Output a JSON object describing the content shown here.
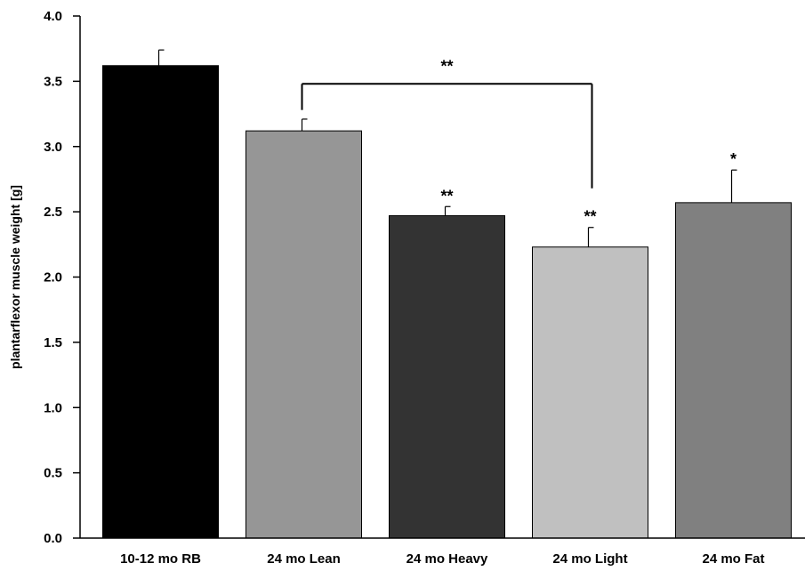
{
  "chart_data": {
    "type": "bar",
    "title": "",
    "xlabel": "",
    "ylabel": "plantarflexor muscle weight [g]",
    "ylim": [
      0,
      4.0
    ],
    "yticks": [
      "0.0",
      "0.5",
      "1.0",
      "1.5",
      "2.0",
      "2.5",
      "3.0",
      "3.5",
      "4.0"
    ],
    "grid": false,
    "categories": [
      "10-12 mo RB",
      "24 mo Lean",
      "24 mo Heavy",
      "24 mo Light",
      "24 mo Fat"
    ],
    "values": [
      3.62,
      3.12,
      2.47,
      2.23,
      2.57
    ],
    "errors": [
      0.12,
      0.09,
      0.07,
      0.15,
      0.25
    ],
    "colors": [
      "#000000",
      "#969696",
      "#333333",
      "#c0c0c0",
      "#808080"
    ],
    "significance": [
      "",
      "",
      "**",
      "**",
      "*"
    ],
    "bracket": {
      "from": "24 mo Lean",
      "to": "24 mo Light",
      "label": "**"
    }
  }
}
